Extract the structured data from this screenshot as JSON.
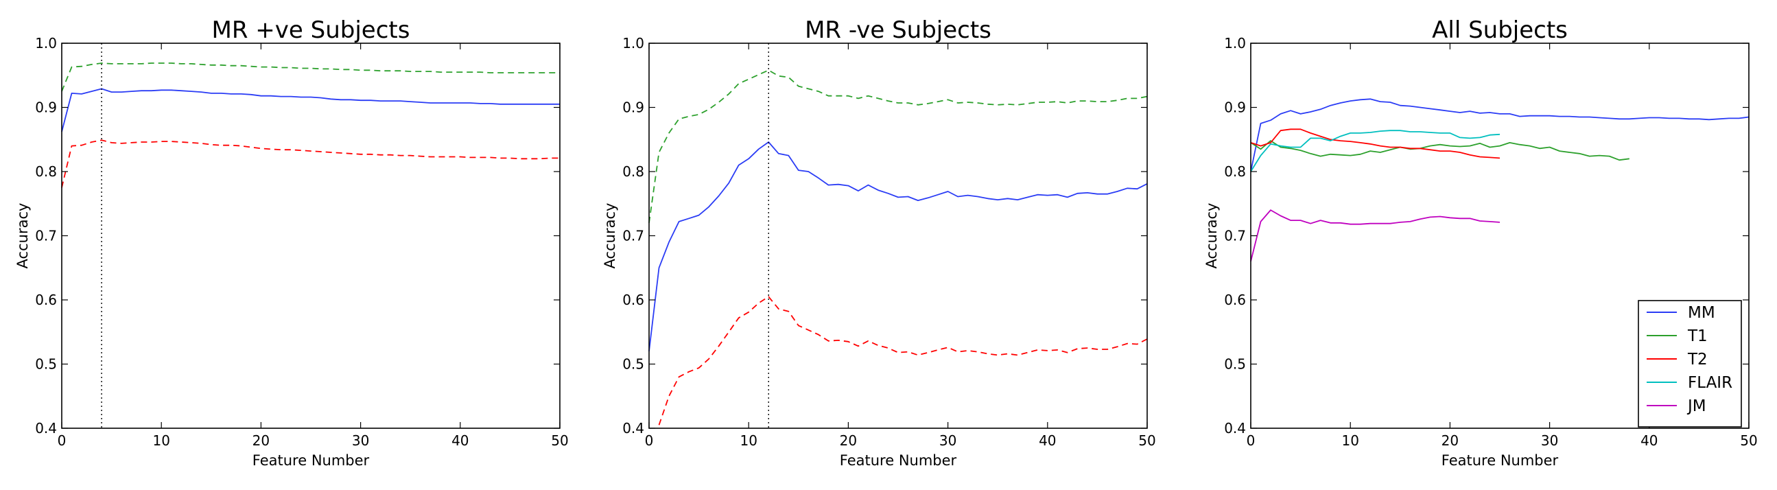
{
  "chart_data": [
    {
      "type": "line",
      "title": "MR +ve Subjects",
      "xlabel": "Feature Number",
      "ylabel": "Accuracy",
      "xlim": [
        0,
        50
      ],
      "ylim": [
        0.4,
        1.0
      ],
      "xticks": [
        "0",
        "10",
        "20",
        "30",
        "40",
        "50"
      ],
      "yticks": [
        "0.4",
        "0.5",
        "0.6",
        "0.7",
        "0.8",
        "0.9",
        "1.0"
      ],
      "vline_x": 4,
      "series": [
        {
          "color": "#2a3cf5",
          "style": "solid",
          "x": [
            0,
            1,
            2,
            3,
            4,
            5,
            6,
            7,
            8,
            9,
            10,
            11,
            12,
            13,
            14,
            15,
            16,
            17,
            18,
            19,
            20,
            21,
            22,
            23,
            24,
            25,
            26,
            27,
            28,
            29,
            30,
            31,
            32,
            33,
            34,
            35,
            36,
            37,
            38,
            39,
            40,
            41,
            42,
            43,
            44,
            45,
            46,
            47,
            48,
            49,
            50
          ],
          "y": [
            0.862,
            0.922,
            0.921,
            0.925,
            0.929,
            0.924,
            0.924,
            0.925,
            0.926,
            0.926,
            0.927,
            0.927,
            0.926,
            0.925,
            0.924,
            0.922,
            0.922,
            0.921,
            0.921,
            0.92,
            0.918,
            0.918,
            0.917,
            0.917,
            0.916,
            0.916,
            0.915,
            0.913,
            0.912,
            0.912,
            0.911,
            0.911,
            0.91,
            0.91,
            0.91,
            0.909,
            0.908,
            0.907,
            0.907,
            0.907,
            0.907,
            0.907,
            0.906,
            0.906,
            0.905,
            0.905,
            0.905,
            0.905,
            0.905,
            0.905,
            0.905
          ]
        },
        {
          "color": "#2ca02c",
          "style": "dashed",
          "x": [
            0,
            1,
            2,
            3,
            4,
            5,
            6,
            7,
            8,
            9,
            10,
            11,
            12,
            13,
            14,
            15,
            16,
            17,
            18,
            19,
            20,
            21,
            22,
            23,
            24,
            25,
            26,
            27,
            28,
            29,
            30,
            31,
            32,
            33,
            34,
            35,
            36,
            37,
            38,
            39,
            40,
            41,
            42,
            43,
            44,
            45,
            46,
            47,
            48,
            49,
            50
          ],
          "y": [
            0.925,
            0.963,
            0.964,
            0.967,
            0.969,
            0.968,
            0.968,
            0.968,
            0.968,
            0.969,
            0.969,
            0.969,
            0.968,
            0.968,
            0.967,
            0.966,
            0.966,
            0.965,
            0.965,
            0.964,
            0.963,
            0.963,
            0.962,
            0.962,
            0.961,
            0.961,
            0.96,
            0.96,
            0.959,
            0.959,
            0.958,
            0.958,
            0.957,
            0.957,
            0.957,
            0.956,
            0.956,
            0.956,
            0.955,
            0.955,
            0.955,
            0.955,
            0.955,
            0.954,
            0.954,
            0.954,
            0.954,
            0.954,
            0.954,
            0.954,
            0.954
          ]
        },
        {
          "color": "#ff0000",
          "style": "dashed",
          "x": [
            0,
            1,
            2,
            3,
            4,
            5,
            6,
            7,
            8,
            9,
            10,
            11,
            12,
            13,
            14,
            15,
            16,
            17,
            18,
            19,
            20,
            21,
            22,
            23,
            24,
            25,
            26,
            27,
            28,
            29,
            30,
            31,
            32,
            33,
            34,
            35,
            36,
            37,
            38,
            39,
            40,
            41,
            42,
            43,
            44,
            45,
            46,
            47,
            48,
            49,
            50
          ],
          "y": [
            0.775,
            0.84,
            0.841,
            0.846,
            0.849,
            0.845,
            0.844,
            0.845,
            0.846,
            0.846,
            0.847,
            0.847,
            0.846,
            0.845,
            0.844,
            0.842,
            0.841,
            0.841,
            0.84,
            0.838,
            0.836,
            0.835,
            0.834,
            0.834,
            0.833,
            0.832,
            0.831,
            0.83,
            0.829,
            0.828,
            0.827,
            0.827,
            0.826,
            0.826,
            0.825,
            0.825,
            0.824,
            0.823,
            0.823,
            0.823,
            0.823,
            0.822,
            0.822,
            0.822,
            0.821,
            0.821,
            0.82,
            0.82,
            0.82,
            0.821,
            0.821
          ]
        }
      ]
    },
    {
      "type": "line",
      "title": "MR -ve Subjects",
      "xlabel": "Feature Number",
      "ylabel": "Accuracy",
      "xlim": [
        0,
        50
      ],
      "ylim": [
        0.4,
        1.0
      ],
      "xticks": [
        "0",
        "10",
        "20",
        "30",
        "40",
        "50"
      ],
      "yticks": [
        "0.4",
        "0.5",
        "0.6",
        "0.7",
        "0.8",
        "0.9",
        "1.0"
      ],
      "vline_x": 12,
      "series": [
        {
          "color": "#2a3cf5",
          "style": "solid",
          "x": [
            0,
            1,
            2,
            3,
            4,
            5,
            6,
            7,
            8,
            9,
            10,
            11,
            12,
            13,
            14,
            15,
            16,
            17,
            18,
            19,
            20,
            21,
            22,
            23,
            24,
            25,
            26,
            27,
            28,
            29,
            30,
            31,
            32,
            33,
            34,
            35,
            36,
            37,
            38,
            39,
            40,
            41,
            42,
            43,
            44,
            45,
            46,
            47,
            48,
            49,
            50
          ],
          "y": [
            0.52,
            0.65,
            0.69,
            0.722,
            0.727,
            0.732,
            0.745,
            0.762,
            0.782,
            0.81,
            0.82,
            0.835,
            0.846,
            0.828,
            0.825,
            0.802,
            0.8,
            0.79,
            0.779,
            0.78,
            0.778,
            0.77,
            0.779,
            0.771,
            0.766,
            0.76,
            0.761,
            0.755,
            0.759,
            0.764,
            0.769,
            0.761,
            0.763,
            0.761,
            0.758,
            0.756,
            0.758,
            0.756,
            0.76,
            0.764,
            0.763,
            0.764,
            0.76,
            0.766,
            0.767,
            0.765,
            0.765,
            0.769,
            0.774,
            0.773,
            0.781
          ]
        },
        {
          "color": "#2ca02c",
          "style": "dashed",
          "x": [
            0,
            1,
            2,
            3,
            4,
            5,
            6,
            7,
            8,
            9,
            10,
            11,
            12,
            13,
            14,
            15,
            16,
            17,
            18,
            19,
            20,
            21,
            22,
            23,
            24,
            25,
            26,
            27,
            28,
            29,
            30,
            31,
            32,
            33,
            34,
            35,
            36,
            37,
            38,
            39,
            40,
            41,
            42,
            43,
            44,
            45,
            46,
            47,
            48,
            49,
            50
          ],
          "y": [
            0.72,
            0.83,
            0.86,
            0.882,
            0.886,
            0.889,
            0.897,
            0.908,
            0.921,
            0.937,
            0.944,
            0.951,
            0.958,
            0.949,
            0.947,
            0.933,
            0.929,
            0.925,
            0.918,
            0.918,
            0.918,
            0.914,
            0.918,
            0.914,
            0.91,
            0.907,
            0.907,
            0.904,
            0.906,
            0.909,
            0.912,
            0.907,
            0.908,
            0.907,
            0.905,
            0.904,
            0.905,
            0.904,
            0.906,
            0.908,
            0.908,
            0.909,
            0.907,
            0.91,
            0.91,
            0.909,
            0.909,
            0.911,
            0.914,
            0.914,
            0.917
          ]
        },
        {
          "color": "#ff0000",
          "style": "dashed",
          "x": [
            1,
            2,
            3,
            4,
            5,
            6,
            7,
            8,
            9,
            10,
            11,
            12,
            13,
            14,
            15,
            16,
            17,
            18,
            19,
            20,
            21,
            22,
            23,
            24,
            25,
            26,
            27,
            28,
            29,
            30,
            31,
            32,
            33,
            34,
            35,
            36,
            37,
            38,
            39,
            40,
            41,
            42,
            43,
            44,
            45,
            46,
            47,
            48,
            49,
            50
          ],
          "y": [
            0.405,
            0.45,
            0.48,
            0.488,
            0.494,
            0.508,
            0.528,
            0.55,
            0.572,
            0.581,
            0.595,
            0.605,
            0.586,
            0.582,
            0.56,
            0.553,
            0.546,
            0.536,
            0.537,
            0.535,
            0.528,
            0.536,
            0.529,
            0.525,
            0.518,
            0.519,
            0.514,
            0.518,
            0.522,
            0.526,
            0.519,
            0.521,
            0.519,
            0.516,
            0.514,
            0.516,
            0.514,
            0.518,
            0.522,
            0.521,
            0.522,
            0.518,
            0.524,
            0.525,
            0.523,
            0.523,
            0.527,
            0.532,
            0.531,
            0.539
          ]
        }
      ]
    },
    {
      "type": "line",
      "title": "All Subjects",
      "xlabel": "Feature Number",
      "ylabel": "Accuracy",
      "xlim": [
        0,
        50
      ],
      "ylim": [
        0.4,
        1.0
      ],
      "xticks": [
        "0",
        "10",
        "20",
        "30",
        "40",
        "50"
      ],
      "yticks": [
        "0.4",
        "0.5",
        "0.6",
        "0.7",
        "0.8",
        "0.9",
        "1.0"
      ],
      "legend": "lower-right",
      "series": [
        {
          "name": "MM",
          "color": "#2a3cf5",
          "style": "solid",
          "x": [
            0,
            1,
            2,
            3,
            4,
            5,
            6,
            7,
            8,
            9,
            10,
            11,
            12,
            13,
            14,
            15,
            16,
            17,
            18,
            19,
            20,
            21,
            22,
            23,
            24,
            25,
            26,
            27,
            28,
            29,
            30,
            31,
            32,
            33,
            34,
            35,
            36,
            37,
            38,
            39,
            40,
            41,
            42,
            43,
            44,
            45,
            46,
            47,
            48,
            49,
            50
          ],
          "y": [
            0.8,
            0.875,
            0.88,
            0.89,
            0.895,
            0.89,
            0.893,
            0.897,
            0.903,
            0.907,
            0.91,
            0.912,
            0.913,
            0.909,
            0.908,
            0.903,
            0.902,
            0.9,
            0.898,
            0.896,
            0.894,
            0.892,
            0.894,
            0.891,
            0.892,
            0.89,
            0.89,
            0.886,
            0.887,
            0.887,
            0.887,
            0.886,
            0.886,
            0.885,
            0.885,
            0.884,
            0.883,
            0.882,
            0.882,
            0.883,
            0.884,
            0.884,
            0.883,
            0.883,
            0.882,
            0.882,
            0.881,
            0.882,
            0.883,
            0.883,
            0.885
          ]
        },
        {
          "name": "T1",
          "color": "#2ca02c",
          "style": "solid",
          "x": [
            0,
            1,
            2,
            3,
            4,
            5,
            6,
            7,
            8,
            9,
            10,
            11,
            12,
            13,
            14,
            15,
            16,
            17,
            18,
            19,
            20,
            21,
            22,
            23,
            24,
            25,
            26,
            27,
            28,
            29,
            30,
            31,
            32,
            33,
            34,
            35,
            36,
            37,
            38
          ],
          "y": [
            0.845,
            0.835,
            0.848,
            0.838,
            0.836,
            0.833,
            0.828,
            0.824,
            0.827,
            0.826,
            0.825,
            0.827,
            0.832,
            0.83,
            0.834,
            0.838,
            0.835,
            0.836,
            0.84,
            0.842,
            0.84,
            0.839,
            0.84,
            0.844,
            0.838,
            0.84,
            0.845,
            0.842,
            0.84,
            0.836,
            0.838,
            0.832,
            0.83,
            0.828,
            0.824,
            0.825,
            0.824,
            0.818,
            0.82
          ]
        },
        {
          "name": "T2",
          "color": "#ff0000",
          "style": "solid",
          "x": [
            0,
            1,
            2,
            3,
            4,
            5,
            6,
            7,
            8,
            9,
            10,
            11,
            12,
            13,
            14,
            15,
            16,
            17,
            18,
            19,
            20,
            21,
            22,
            23,
            24,
            25
          ],
          "y": [
            0.845,
            0.84,
            0.845,
            0.864,
            0.866,
            0.866,
            0.86,
            0.855,
            0.85,
            0.848,
            0.847,
            0.845,
            0.843,
            0.84,
            0.838,
            0.838,
            0.836,
            0.836,
            0.834,
            0.832,
            0.832,
            0.83,
            0.826,
            0.823,
            0.822,
            0.821
          ]
        },
        {
          "name": "FLAIR",
          "color": "#00bfbf",
          "style": "solid",
          "x": [
            0,
            1,
            2,
            3,
            4,
            5,
            6,
            7,
            8,
            9,
            10,
            11,
            12,
            13,
            14,
            15,
            16,
            17,
            18,
            19,
            20,
            21,
            22,
            23,
            24,
            25
          ],
          "y": [
            0.8,
            0.825,
            0.843,
            0.84,
            0.838,
            0.838,
            0.852,
            0.852,
            0.848,
            0.855,
            0.86,
            0.86,
            0.861,
            0.863,
            0.864,
            0.864,
            0.862,
            0.862,
            0.861,
            0.86,
            0.86,
            0.853,
            0.852,
            0.853,
            0.857,
            0.858
          ]
        },
        {
          "name": "JM",
          "color": "#bf00bf",
          "style": "solid",
          "x": [
            0,
            1,
            2,
            3,
            4,
            5,
            6,
            7,
            8,
            9,
            10,
            11,
            12,
            13,
            14,
            15,
            16,
            17,
            18,
            19,
            20,
            21,
            22,
            23,
            24,
            25
          ],
          "y": [
            0.66,
            0.722,
            0.74,
            0.731,
            0.724,
            0.724,
            0.719,
            0.724,
            0.72,
            0.72,
            0.718,
            0.718,
            0.719,
            0.719,
            0.719,
            0.721,
            0.722,
            0.726,
            0.729,
            0.73,
            0.728,
            0.727,
            0.727,
            0.723,
            0.722,
            0.721
          ]
        }
      ]
    }
  ]
}
